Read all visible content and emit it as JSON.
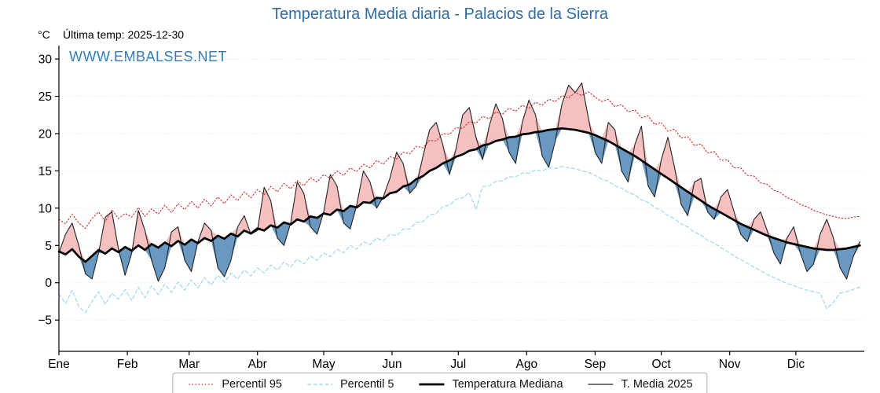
{
  "title": "Temperatura Media diaria - Palacios de la Sierra",
  "header": {
    "unit": "°C",
    "last_temp": "Última temp: 2025-12-30"
  },
  "watermark": "WWW.EMBALSES.NET",
  "colors": {
    "title": "#2e6da4",
    "watermark": "#2e7bbf",
    "percentil95": "#d62b2b",
    "percentil5": "#a0d8ef",
    "mediana": "#000000",
    "t_media_2025": "#222222",
    "fill_above": "#ef9a9a",
    "fill_below": "#4f86b5"
  },
  "legend": [
    {
      "label": "Percentil 95",
      "style": "dotted",
      "color": "#d62b2b"
    },
    {
      "label": "Percentil 5",
      "style": "dashed",
      "color": "#a0d8ef"
    },
    {
      "label": "Temperatura Mediana",
      "style": "solid-thick",
      "color": "#000000"
    },
    {
      "label": "T. Media 2025",
      "style": "solid-thin",
      "color": "#222222"
    }
  ],
  "chart_data": {
    "type": "line",
    "title": "Temperatura Media diaria - Palacios de la Sierra",
    "xlabel": "",
    "ylabel": "°C",
    "ylim": [
      -9.2,
      31.8
    ],
    "grid": true,
    "legend_position": "bottom",
    "yticks": [
      30,
      25,
      20,
      15,
      10,
      5,
      0,
      -5
    ],
    "ytick_labels": [
      "30",
      "25",
      "20",
      "15",
      "10",
      "5",
      "0",
      "−5"
    ],
    "x_months": [
      "Ene",
      "Feb",
      "Mar",
      "Abr",
      "May",
      "Jun",
      "Jul",
      "Ago",
      "Sep",
      "Oct",
      "Nov",
      "Dic"
    ],
    "month_start_days": [
      0,
      31,
      59,
      90,
      120,
      151,
      181,
      212,
      243,
      273,
      304,
      334
    ],
    "sample_interval_days": 3,
    "fills": {
      "above_color": "#ef9a9a",
      "below_color": "#4f86b5"
    },
    "series": [
      {
        "name": "Percentil 95",
        "style": "dotted",
        "color": "#d62b2b",
        "values": [
          8.5,
          7.9,
          9.2,
          8.0,
          7.3,
          8.6,
          9.5,
          8.2,
          9.8,
          8.6,
          9.3,
          8.8,
          10.1,
          8.9,
          9.9,
          9.2,
          10.4,
          9.4,
          10.6,
          9.8,
          10.9,
          10.0,
          11.2,
          10.3,
          11.5,
          10.6,
          11.8,
          11.0,
          12.2,
          11.4,
          12.5,
          11.8,
          12.9,
          12.2,
          13.3,
          12.6,
          13.7,
          13.0,
          14.1,
          13.5,
          14.5,
          14.0,
          15.0,
          14.4,
          15.4,
          14.9,
          15.9,
          15.4,
          16.4,
          15.9,
          16.9,
          16.6,
          17.5,
          17.3,
          18.3,
          18.1,
          19.1,
          19.0,
          20.0,
          19.9,
          20.8,
          20.7,
          21.6,
          21.4,
          22.3,
          22.0,
          22.9,
          22.6,
          23.4,
          23.0,
          23.8,
          23.4,
          24.2,
          23.8,
          24.6,
          24.3,
          25.1,
          24.8,
          25.5,
          25.1,
          25.6,
          24.9,
          24.3,
          24.6,
          23.6,
          23.9,
          22.9,
          23.2,
          22.1,
          22.4,
          21.2,
          21.5,
          20.3,
          20.6,
          19.4,
          19.6,
          18.4,
          18.6,
          17.4,
          17.6,
          16.4,
          16.5,
          15.4,
          15.4,
          14.4,
          14.3,
          13.4,
          13.2,
          12.4,
          12.1,
          11.4,
          11.1,
          10.5,
          10.2,
          9.7,
          9.4,
          9.1,
          8.9,
          8.7,
          8.6,
          8.8,
          8.9
        ]
      },
      {
        "name": "Percentil 5",
        "style": "dashed",
        "color": "#a0d8ef",
        "values": [
          -1.5,
          -2.8,
          -1.0,
          -3.2,
          -4.0,
          -2.5,
          -1.2,
          -2.9,
          -1.4,
          -2.2,
          -0.9,
          -2.4,
          -0.6,
          -2.0,
          -0.4,
          -1.6,
          -0.2,
          -1.3,
          0.1,
          -1.0,
          0.4,
          -0.7,
          0.7,
          -0.3,
          1.0,
          0.1,
          1.3,
          0.5,
          1.7,
          0.9,
          2.0,
          1.3,
          2.4,
          1.7,
          2.8,
          2.1,
          3.2,
          2.5,
          3.6,
          3.0,
          4.0,
          3.5,
          4.5,
          4.0,
          5.0,
          4.5,
          5.5,
          5.1,
          6.0,
          5.6,
          6.5,
          6.3,
          7.2,
          7.2,
          8.1,
          8.2,
          9.1,
          9.3,
          10.2,
          10.4,
          11.2,
          11.4,
          12.1,
          9.8,
          12.9,
          13.0,
          13.6,
          13.7,
          14.2,
          14.2,
          14.7,
          14.7,
          15.1,
          15.0,
          15.4,
          15.3,
          15.6,
          15.4,
          15.3,
          15.0,
          14.8,
          14.4,
          13.9,
          13.6,
          13.0,
          12.7,
          12.1,
          11.8,
          11.1,
          10.8,
          10.1,
          9.7,
          9.0,
          8.6,
          7.9,
          7.5,
          6.8,
          6.4,
          5.7,
          5.3,
          4.7,
          4.2,
          3.6,
          3.1,
          2.6,
          2.1,
          1.6,
          1.1,
          0.7,
          0.3,
          -0.1,
          -0.4,
          -0.7,
          -1.0,
          -1.2,
          -1.4,
          -3.5,
          -2.6,
          -1.4,
          -1.2,
          -0.9,
          -0.6
        ]
      },
      {
        "name": "Temperatura Mediana",
        "style": "solid-thick",
        "color": "#000000",
        "values": [
          4.2,
          3.8,
          4.5,
          3.5,
          2.8,
          3.6,
          4.4,
          3.9,
          4.6,
          4.1,
          4.8,
          4.3,
          5.0,
          4.4,
          5.2,
          4.7,
          5.4,
          4.9,
          5.6,
          5.1,
          5.8,
          5.3,
          6.0,
          5.6,
          6.3,
          5.9,
          6.6,
          6.2,
          7.0,
          6.6,
          7.3,
          7.0,
          7.7,
          7.4,
          8.1,
          7.8,
          8.5,
          8.2,
          8.9,
          8.7,
          9.3,
          9.1,
          9.8,
          9.6,
          10.3,
          10.1,
          10.8,
          10.7,
          11.4,
          11.3,
          12.0,
          12.2,
          12.9,
          13.2,
          13.9,
          14.3,
          15.0,
          15.4,
          16.0,
          16.4,
          16.9,
          17.2,
          17.7,
          17.9,
          18.4,
          18.6,
          19.0,
          19.2,
          19.5,
          19.6,
          19.9,
          20.0,
          20.2,
          20.3,
          20.5,
          20.6,
          20.7,
          20.6,
          20.5,
          20.3,
          20.1,
          19.8,
          19.4,
          19.0,
          18.5,
          18.0,
          17.5,
          17.0,
          16.4,
          15.8,
          15.2,
          14.6,
          14.0,
          13.4,
          12.8,
          12.2,
          11.6,
          11.0,
          10.4,
          9.9,
          9.4,
          8.9,
          8.4,
          7.9,
          7.5,
          7.1,
          6.7,
          6.3,
          6.0,
          5.7,
          5.4,
          5.2,
          5.0,
          4.8,
          4.6,
          4.5,
          4.4,
          4.4,
          4.5,
          4.6,
          4.8,
          5.0
        ]
      },
      {
        "name": "T. Media 2025",
        "style": "solid-thin",
        "color": "#222222",
        "values": [
          4.0,
          6.5,
          8.0,
          5.0,
          1.2,
          0.5,
          4.0,
          8.8,
          9.5,
          4.5,
          1.0,
          4.0,
          9.7,
          7.0,
          3.0,
          0.2,
          2.0,
          6.8,
          7.5,
          3.0,
          1.5,
          5.5,
          8.0,
          7.0,
          2.0,
          0.8,
          3.0,
          7.5,
          9.0,
          6.5,
          7.0,
          12.8,
          11.0,
          6.0,
          5.0,
          8.0,
          13.5,
          12.0,
          7.5,
          6.5,
          9.5,
          14.5,
          13.0,
          8.0,
          7.2,
          10.5,
          15.0,
          13.5,
          10.0,
          11.5,
          14.0,
          17.5,
          16.0,
          12.0,
          13.0,
          17.0,
          20.5,
          21.5,
          18.5,
          14.5,
          18.0,
          22.5,
          23.5,
          19.5,
          16.5,
          21.0,
          24.0,
          22.0,
          17.5,
          16.0,
          21.5,
          24.5,
          22.5,
          17.0,
          15.5,
          19.0,
          24.0,
          26.5,
          25.5,
          26.8,
          22.0,
          17.5,
          16.0,
          21.5,
          20.5,
          15.0,
          13.5,
          18.5,
          21.0,
          13.0,
          11.5,
          16.5,
          19.5,
          15.5,
          10.5,
          9.0,
          13.5,
          14.0,
          9.5,
          8.5,
          11.5,
          12.5,
          9.5,
          6.5,
          5.5,
          8.5,
          9.5,
          7.0,
          4.0,
          2.5,
          6.0,
          7.5,
          4.0,
          1.5,
          2.5,
          6.5,
          8.5,
          6.0,
          2.0,
          0.5,
          3.5,
          5.5
        ]
      }
    ]
  }
}
